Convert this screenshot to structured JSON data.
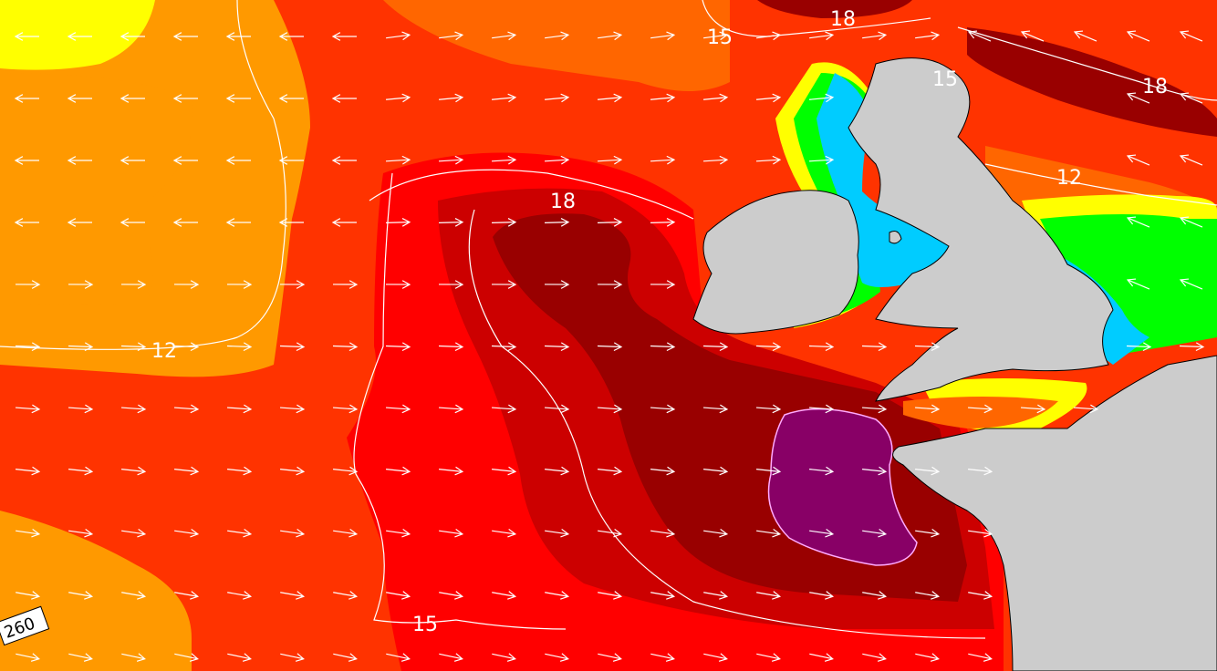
{
  "map": {
    "contour_labels": [
      "18",
      "15",
      "15",
      "18",
      "12",
      "18",
      "12",
      "15"
    ],
    "corner_label": "260",
    "colors": {
      "yellow": "#ffff00",
      "orange": "#ff9900",
      "orange_red": "#ff6600",
      "red_orange": "#ff3300",
      "red": "#ff0000",
      "dark_red": "#cc0000",
      "maroon": "#990000",
      "purple": "#880066",
      "land": "#cccccc",
      "green": "#00ff00",
      "cyan": "#00ccff",
      "blue": "#0000cc"
    },
    "vector_color": "#ffffff"
  }
}
